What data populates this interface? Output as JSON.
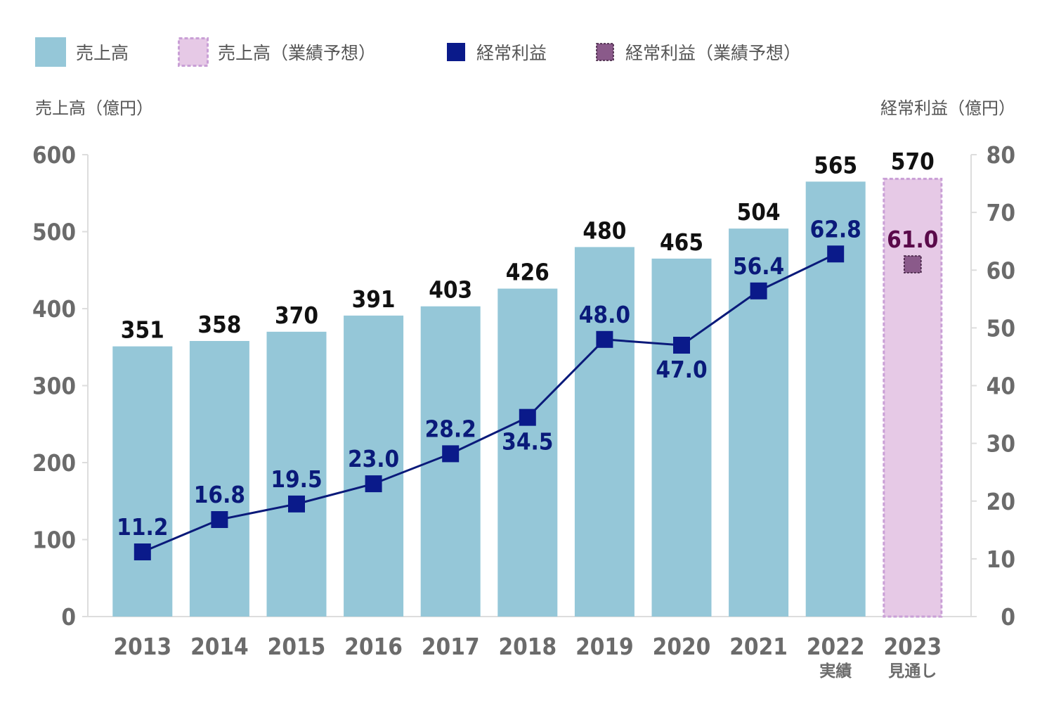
{
  "legend": [
    {
      "label": "売上高",
      "swatch": "bar"
    },
    {
      "label": "売上高（業績予想）",
      "swatch": "bar-forecast"
    },
    {
      "label": "経常利益",
      "swatch": "marker"
    },
    {
      "label": "経常利益（業績予想）",
      "swatch": "marker-forecast"
    }
  ],
  "colors": {
    "bar": "#95c7d8",
    "bar_forecast_fill": "#e6c9e6",
    "bar_forecast_border": "#c99fd6",
    "line": "#0a1a7a",
    "marker": "#0a1a8a",
    "marker_forecast": "#8a5a8a",
    "marker_forecast_label": "#5a0a4a",
    "axis_text": "#6b6b6b",
    "grid": "#dddddd"
  },
  "chart_data": {
    "type": "bar",
    "left_axis_title": "売上高（億円）",
    "right_axis_title": "経常利益（億円）",
    "left_ylim": [
      0,
      600
    ],
    "left_ticks": [
      "0",
      "100",
      "200",
      "300",
      "400",
      "500",
      "600"
    ],
    "right_ylim": [
      0,
      80
    ],
    "right_ticks": [
      "0",
      "10",
      "20",
      "30",
      "40",
      "50",
      "60",
      "70",
      "80"
    ],
    "categories": [
      "2013",
      "2014",
      "2015",
      "2016",
      "2017",
      "2018",
      "2019",
      "2020",
      "2021",
      "2022",
      "2023"
    ],
    "category_sublabels": [
      "",
      "",
      "",
      "",
      "",
      "",
      "",
      "",
      "",
      "実績",
      "見通し"
    ],
    "series": [
      {
        "name": "売上高",
        "type": "bar",
        "axis": "left",
        "values": [
          351,
          358,
          370,
          391,
          403,
          426,
          480,
          465,
          504,
          565,
          570
        ],
        "labels": [
          "351",
          "358",
          "370",
          "391",
          "403",
          "426",
          "480",
          "465",
          "504",
          "565",
          "570"
        ],
        "forecast_from_index": 10
      },
      {
        "name": "経常利益",
        "type": "line",
        "axis": "right",
        "values": [
          11.2,
          16.8,
          19.5,
          23.0,
          28.2,
          34.5,
          48.0,
          47.0,
          56.4,
          62.8,
          61.0
        ],
        "labels": [
          "11.2",
          "16.8",
          "19.5",
          "23.0",
          "28.2",
          "34.5",
          "48.0",
          "47.0",
          "56.4",
          "62.8",
          "61.0"
        ],
        "label_position": [
          "above",
          "above",
          "above",
          "above",
          "above",
          "below",
          "above",
          "below",
          "above",
          "above",
          "above"
        ],
        "forecast_from_index": 10
      }
    ]
  }
}
